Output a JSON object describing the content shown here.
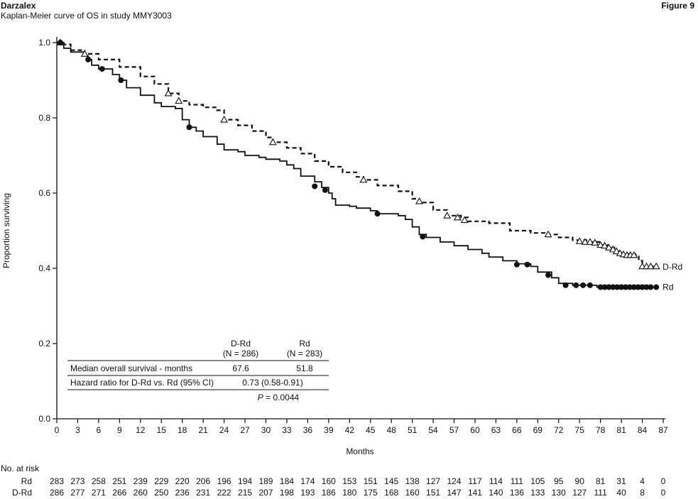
{
  "header": {
    "brand": "Darzalex",
    "subtitle": "Kaplan-Meier curve of OS in study MMY3003",
    "figure_label": "Figure 9"
  },
  "chart_data": {
    "type": "line",
    "title": "",
    "xlabel": "Months",
    "ylabel": "Proportion surviving",
    "xlim": [
      0,
      87
    ],
    "ylim": [
      0.0,
      1.0
    ],
    "x_ticks": [
      0,
      3,
      6,
      9,
      12,
      15,
      18,
      21,
      24,
      27,
      30,
      33,
      36,
      39,
      42,
      45,
      48,
      51,
      54,
      57,
      60,
      63,
      66,
      69,
      72,
      75,
      78,
      81,
      84,
      87
    ],
    "y_ticks": [
      0.0,
      0.2,
      0.4,
      0.6,
      0.8,
      1.0
    ],
    "y_tick_labels": [
      "0.0",
      "0.2",
      "0.4",
      "0.6",
      "0.8",
      "1.0"
    ],
    "grid": false,
    "series": [
      {
        "name": "D-Rd",
        "style": "dashed",
        "censor_marker": "triangle",
        "color": "#111111",
        "points": [
          [
            0,
            1.0
          ],
          [
            1,
            0.995
          ],
          [
            2,
            0.98
          ],
          [
            4,
            0.97
          ],
          [
            6,
            0.955
          ],
          [
            9,
            0.935
          ],
          [
            12,
            0.91
          ],
          [
            14,
            0.89
          ],
          [
            16,
            0.865
          ],
          [
            17.5,
            0.845
          ],
          [
            19,
            0.835
          ],
          [
            21,
            0.828
          ],
          [
            23,
            0.82
          ],
          [
            24,
            0.795
          ],
          [
            26,
            0.78
          ],
          [
            28,
            0.765
          ],
          [
            30,
            0.748
          ],
          [
            31,
            0.735
          ],
          [
            33,
            0.72
          ],
          [
            35,
            0.705
          ],
          [
            37,
            0.685
          ],
          [
            39,
            0.67
          ],
          [
            41,
            0.655
          ],
          [
            43,
            0.643
          ],
          [
            44,
            0.635
          ],
          [
            46,
            0.62
          ],
          [
            49,
            0.605
          ],
          [
            51,
            0.585
          ],
          [
            52,
            0.575
          ],
          [
            54,
            0.555
          ],
          [
            56,
            0.54
          ],
          [
            58,
            0.535
          ],
          [
            59,
            0.525
          ],
          [
            62,
            0.52
          ],
          [
            65,
            0.5
          ],
          [
            68,
            0.494
          ],
          [
            70,
            0.49
          ],
          [
            72,
            0.482
          ],
          [
            74,
            0.475
          ],
          [
            76,
            0.47
          ],
          [
            78,
            0.462
          ],
          [
            79,
            0.455
          ],
          [
            80,
            0.445
          ],
          [
            81,
            0.438
          ],
          [
            83,
            0.435
          ],
          [
            83.5,
            0.42
          ],
          [
            84,
            0.405
          ],
          [
            86,
            0.404
          ]
        ],
        "censored": [
          [
            0.5,
            1.0
          ],
          [
            4,
            0.97
          ],
          [
            16,
            0.865
          ],
          [
            17.5,
            0.845
          ],
          [
            24,
            0.795
          ],
          [
            31,
            0.735
          ],
          [
            44,
            0.635
          ],
          [
            52,
            0.578
          ],
          [
            56,
            0.54
          ],
          [
            57.5,
            0.535
          ],
          [
            58.5,
            0.528
          ],
          [
            70.5,
            0.49
          ],
          [
            75,
            0.472
          ],
          [
            75.8,
            0.47
          ],
          [
            76.5,
            0.47
          ],
          [
            77.2,
            0.468
          ],
          [
            78,
            0.462
          ],
          [
            78.6,
            0.46
          ],
          [
            79.2,
            0.455
          ],
          [
            79.8,
            0.45
          ],
          [
            80.3,
            0.445
          ],
          [
            80.8,
            0.44
          ],
          [
            81.3,
            0.437
          ],
          [
            81.8,
            0.435
          ],
          [
            82.3,
            0.435
          ],
          [
            82.8,
            0.435
          ],
          [
            84,
            0.405
          ],
          [
            84.6,
            0.405
          ],
          [
            85.2,
            0.405
          ],
          [
            86,
            0.405
          ]
        ]
      },
      {
        "name": "Rd",
        "style": "solid",
        "censor_marker": "circle",
        "color": "#111111",
        "points": [
          [
            0,
            1.0
          ],
          [
            1,
            0.985
          ],
          [
            2,
            0.975
          ],
          [
            3,
            0.975
          ],
          [
            4,
            0.965
          ],
          [
            4.5,
            0.955
          ],
          [
            5,
            0.94
          ],
          [
            6,
            0.93
          ],
          [
            8,
            0.915
          ],
          [
            9,
            0.9
          ],
          [
            10,
            0.88
          ],
          [
            12,
            0.86
          ],
          [
            14,
            0.84
          ],
          [
            15,
            0.83
          ],
          [
            17,
            0.825
          ],
          [
            18,
            0.795
          ],
          [
            19,
            0.775
          ],
          [
            20,
            0.765
          ],
          [
            21,
            0.75
          ],
          [
            23,
            0.73
          ],
          [
            24,
            0.715
          ],
          [
            26,
            0.71
          ],
          [
            27,
            0.7
          ],
          [
            29,
            0.695
          ],
          [
            30,
            0.69
          ],
          [
            32,
            0.685
          ],
          [
            33,
            0.675
          ],
          [
            34,
            0.665
          ],
          [
            35,
            0.645
          ],
          [
            37,
            0.63
          ],
          [
            38,
            0.615
          ],
          [
            39,
            0.6
          ],
          [
            39.5,
            0.585
          ],
          [
            40,
            0.568
          ],
          [
            42,
            0.565
          ],
          [
            43,
            0.56
          ],
          [
            45,
            0.553
          ],
          [
            46,
            0.545
          ],
          [
            49,
            0.54
          ],
          [
            50,
            0.53
          ],
          [
            51,
            0.51
          ],
          [
            52,
            0.49
          ],
          [
            53,
            0.482
          ],
          [
            55,
            0.47
          ],
          [
            57,
            0.46
          ],
          [
            59,
            0.45
          ],
          [
            61,
            0.44
          ],
          [
            62,
            0.43
          ],
          [
            64,
            0.42
          ],
          [
            66,
            0.412
          ],
          [
            68,
            0.405
          ],
          [
            69,
            0.39
          ],
          [
            71,
            0.375
          ],
          [
            72,
            0.36
          ],
          [
            74,
            0.355
          ],
          [
            76,
            0.355
          ],
          [
            77.5,
            0.35
          ],
          [
            79,
            0.35
          ],
          [
            86,
            0.35
          ]
        ],
        "censored": [
          [
            0.5,
            1.0
          ],
          [
            4.5,
            0.955
          ],
          [
            6.5,
            0.93
          ],
          [
            9.2,
            0.9
          ],
          [
            19,
            0.775
          ],
          [
            37,
            0.618
          ],
          [
            38.5,
            0.608
          ],
          [
            46,
            0.545
          ],
          [
            52.5,
            0.484
          ],
          [
            66,
            0.41
          ],
          [
            67.5,
            0.41
          ],
          [
            70.5,
            0.382
          ],
          [
            73,
            0.355
          ],
          [
            74.5,
            0.355
          ],
          [
            75.5,
            0.355
          ],
          [
            76.5,
            0.355
          ],
          [
            78,
            0.35
          ],
          [
            78.6,
            0.35
          ],
          [
            79.2,
            0.35
          ],
          [
            79.8,
            0.35
          ],
          [
            80.4,
            0.35
          ],
          [
            81,
            0.35
          ],
          [
            81.6,
            0.35
          ],
          [
            82.2,
            0.35
          ],
          [
            82.8,
            0.35
          ],
          [
            83.4,
            0.35
          ],
          [
            84,
            0.35
          ],
          [
            84.6,
            0.35
          ],
          [
            85.2,
            0.35
          ],
          [
            86,
            0.35
          ]
        ]
      }
    ],
    "stats_table": {
      "col_headers": [
        {
          "line1": "D-Rd",
          "line2": "(N = 286)"
        },
        {
          "line1": "Rd",
          "line2": "(N = 283)"
        }
      ],
      "rows": [
        {
          "label": "Median overall survival - months",
          "drd": "67.6",
          "rd": "51.8"
        },
        {
          "label": "Hazard ratio for D-Rd vs. Rd (95% CI)",
          "value": "0.73 (0.58-0.91)"
        }
      ],
      "p_label": "P",
      "p_rest": " = 0.0044"
    },
    "at_risk": {
      "title": "No. at risk",
      "months": [
        0,
        3,
        6,
        9,
        12,
        15,
        18,
        21,
        24,
        27,
        30,
        33,
        36,
        39,
        42,
        45,
        48,
        51,
        54,
        57,
        60,
        63,
        66,
        69,
        72,
        75,
        78,
        81,
        84,
        87
      ],
      "rows": [
        {
          "label": "Rd",
          "values": [
            283,
            273,
            258,
            251,
            239,
            229,
            220,
            206,
            196,
            194,
            189,
            184,
            174,
            160,
            153,
            151,
            145,
            138,
            127,
            124,
            117,
            114,
            111,
            105,
            95,
            90,
            81,
            31,
            4,
            0
          ]
        },
        {
          "label": "D-Rd",
          "values": [
            286,
            277,
            271,
            266,
            260,
            250,
            236,
            231,
            222,
            215,
            207,
            198,
            193,
            186,
            180,
            175,
            168,
            160,
            151,
            147,
            141,
            140,
            136,
            133,
            130,
            127,
            111,
            40,
            8,
            0
          ]
        }
      ]
    }
  }
}
